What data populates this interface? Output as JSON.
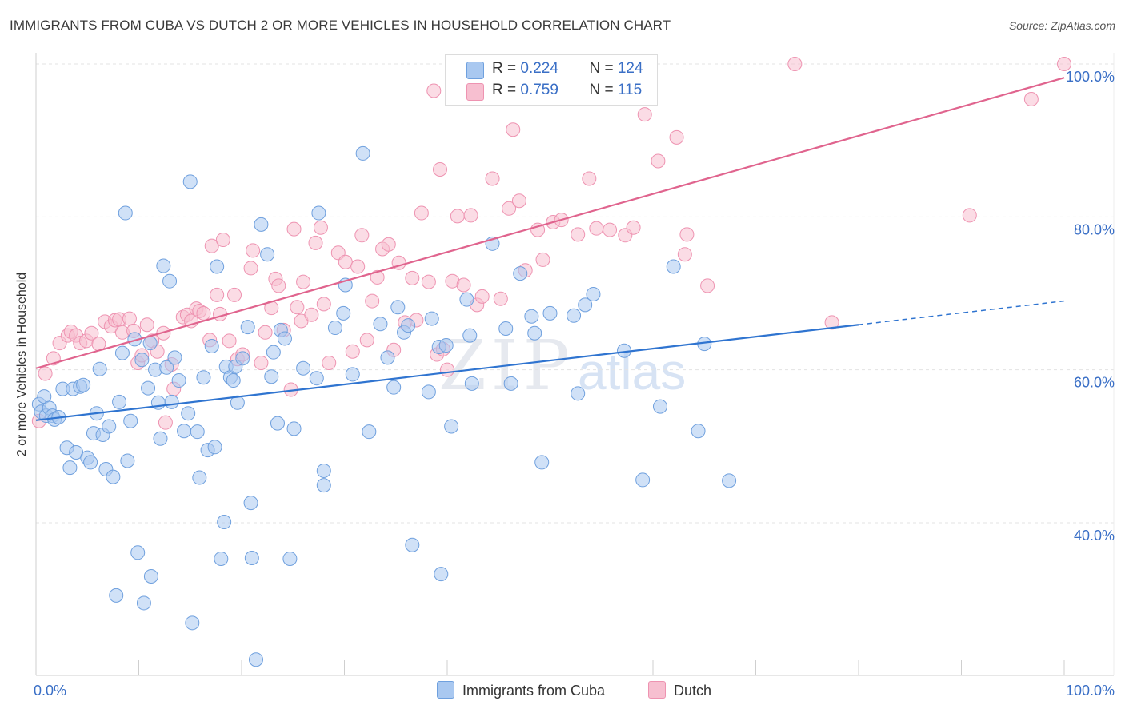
{
  "title": "IMMIGRANTS FROM CUBA VS DUTCH 2 OR MORE VEHICLES IN HOUSEHOLD CORRELATION CHART",
  "source": "Source: ZipAtlas.com",
  "watermark": "ZIP",
  "watermark_atlas": "atlas",
  "legend": {
    "rows": [
      {
        "r_label": "R = ",
        "r_value": "0.224",
        "n_label": "N = ",
        "n_value": "124"
      },
      {
        "r_label": "R = ",
        "r_value": "0.759",
        "n_label": "N = ",
        "n_value": "115"
      }
    ]
  },
  "bottom_legend": [
    "Immigrants from Cuba",
    "Dutch"
  ],
  "colors": {
    "cuba_fill": "#a9c8f0",
    "cuba_stroke": "#6fa0de",
    "cuba_line": "#2f74d0",
    "dutch_fill": "#f7bfd0",
    "dutch_stroke": "#ee93b1",
    "dutch_line": "#e0648e",
    "tick_label": "#3a6fc6",
    "grid": "#e3e3e3"
  },
  "chart_data": {
    "type": "scatter",
    "title": "IMMIGRANTS FROM CUBA VS DUTCH 2 OR MORE VEHICLES IN HOUSEHOLD CORRELATION CHART",
    "xlabel": "",
    "ylabel": "2 or more Vehicles in Household",
    "xlim": [
      0,
      100
    ],
    "ylim": [
      20,
      102
    ],
    "x_tick_labels": [
      "0.0%",
      "100.0%"
    ],
    "y_ticks": [
      40,
      60,
      80,
      100
    ],
    "y_tick_labels": [
      "40.0%",
      "60.0%",
      "80.0%",
      "100.0%"
    ],
    "grid": true,
    "legend_position": "top-center",
    "series": [
      {
        "name": "Immigrants from Cuba",
        "R": 0.224,
        "N": 124,
        "trend": {
          "x0": 0,
          "y0": 53.4,
          "x1": 80,
          "y1": 65.9,
          "dashed_to_x": 100,
          "dashed_to_y": 69.0
        },
        "points": [
          [
            0.3,
            55.5
          ],
          [
            0.5,
            54.5
          ],
          [
            0.8,
            56.5
          ],
          [
            1.0,
            54.0
          ],
          [
            1.3,
            55.0
          ],
          [
            1.6,
            54.0
          ],
          [
            1.8,
            53.5
          ],
          [
            2.2,
            53.8
          ],
          [
            2.6,
            57.5
          ],
          [
            3.0,
            49.8
          ],
          [
            3.3,
            47.2
          ],
          [
            3.6,
            57.5
          ],
          [
            3.9,
            49.2
          ],
          [
            4.3,
            57.8
          ],
          [
            4.6,
            58.0
          ],
          [
            5.0,
            48.5
          ],
          [
            5.3,
            47.9
          ],
          [
            5.6,
            51.7
          ],
          [
            5.9,
            54.3
          ],
          [
            6.2,
            60.1
          ],
          [
            6.5,
            51.5
          ],
          [
            6.8,
            47.0
          ],
          [
            7.1,
            52.6
          ],
          [
            7.5,
            46.0
          ],
          [
            7.8,
            30.5
          ],
          [
            8.1,
            55.8
          ],
          [
            8.4,
            62.2
          ],
          [
            8.7,
            80.5
          ],
          [
            8.9,
            48.1
          ],
          [
            9.2,
            53.3
          ],
          [
            9.6,
            64.0
          ],
          [
            9.9,
            36.1
          ],
          [
            10.3,
            61.3
          ],
          [
            10.5,
            29.5
          ],
          [
            10.9,
            57.6
          ],
          [
            11.1,
            63.5
          ],
          [
            11.2,
            33.0
          ],
          [
            11.6,
            60.0
          ],
          [
            11.9,
            55.7
          ],
          [
            12.1,
            51.0
          ],
          [
            12.4,
            73.6
          ],
          [
            12.7,
            60.3
          ],
          [
            13.0,
            71.6
          ],
          [
            13.2,
            55.8
          ],
          [
            13.5,
            61.6
          ],
          [
            13.9,
            58.6
          ],
          [
            14.4,
            52.0
          ],
          [
            14.8,
            54.3
          ],
          [
            15.0,
            84.6
          ],
          [
            15.2,
            26.9
          ],
          [
            15.7,
            51.9
          ],
          [
            15.9,
            45.9
          ],
          [
            16.3,
            59.0
          ],
          [
            16.7,
            49.5
          ],
          [
            17.1,
            63.1
          ],
          [
            17.4,
            49.9
          ],
          [
            17.6,
            73.5
          ],
          [
            18.0,
            35.3
          ],
          [
            18.3,
            40.1
          ],
          [
            18.5,
            60.4
          ],
          [
            18.9,
            59.0
          ],
          [
            19.2,
            58.6
          ],
          [
            19.4,
            60.4
          ],
          [
            19.6,
            55.7
          ],
          [
            20.1,
            61.5
          ],
          [
            20.6,
            65.6
          ],
          [
            20.9,
            42.6
          ],
          [
            21.0,
            35.4
          ],
          [
            21.4,
            22.1
          ],
          [
            21.9,
            79.0
          ],
          [
            22.5,
            75.1
          ],
          [
            22.9,
            59.1
          ],
          [
            23.1,
            62.3
          ],
          [
            23.5,
            53.0
          ],
          [
            23.8,
            65.2
          ],
          [
            24.2,
            64.1
          ],
          [
            24.7,
            35.3
          ],
          [
            25.1,
            52.3
          ],
          [
            26.0,
            60.2
          ],
          [
            27.3,
            58.9
          ],
          [
            27.5,
            80.5
          ],
          [
            28.0,
            46.8
          ],
          [
            28.0,
            44.9
          ],
          [
            29.1,
            65.5
          ],
          [
            29.9,
            67.4
          ],
          [
            30.1,
            71.1
          ],
          [
            30.8,
            59.4
          ],
          [
            31.8,
            88.3
          ],
          [
            32.4,
            51.9
          ],
          [
            33.5,
            66.0
          ],
          [
            34.2,
            61.6
          ],
          [
            34.8,
            57.7
          ],
          [
            35.2,
            68.2
          ],
          [
            35.8,
            64.9
          ],
          [
            36.2,
            65.8
          ],
          [
            36.6,
            37.1
          ],
          [
            38.2,
            57.1
          ],
          [
            38.5,
            66.7
          ],
          [
            39.2,
            63.0
          ],
          [
            39.4,
            33.3
          ],
          [
            39.9,
            63.2
          ],
          [
            40.4,
            52.6
          ],
          [
            41.9,
            69.2
          ],
          [
            42.2,
            64.5
          ],
          [
            42.4,
            58.2
          ],
          [
            44.4,
            76.5
          ],
          [
            45.7,
            65.4
          ],
          [
            46.2,
            58.2
          ],
          [
            47.1,
            72.6
          ],
          [
            48.2,
            67.0
          ],
          [
            48.5,
            64.8
          ],
          [
            49.2,
            47.9
          ],
          [
            50.0,
            67.4
          ],
          [
            52.3,
            67.1
          ],
          [
            52.7,
            56.9
          ],
          [
            53.4,
            68.5
          ],
          [
            54.2,
            69.9
          ],
          [
            57.2,
            62.5
          ],
          [
            59.0,
            45.6
          ],
          [
            60.7,
            55.2
          ],
          [
            64.4,
            52.0
          ],
          [
            65.0,
            63.4
          ],
          [
            67.4,
            45.5
          ],
          [
            62.0,
            73.5
          ]
        ]
      },
      {
        "name": "Dutch",
        "R": 0.759,
        "N": 115,
        "trend": {
          "x0": 0,
          "y0": 60.2,
          "x1": 100,
          "y1": 98.2
        },
        "points": [
          [
            0.3,
            53.3
          ],
          [
            0.9,
            59.5
          ],
          [
            1.7,
            61.5
          ],
          [
            2.3,
            63.5
          ],
          [
            3.1,
            64.5
          ],
          [
            3.4,
            65.0
          ],
          [
            3.9,
            64.5
          ],
          [
            4.3,
            63.5
          ],
          [
            4.9,
            63.8
          ],
          [
            5.4,
            64.8
          ],
          [
            6.1,
            63.4
          ],
          [
            6.7,
            66.3
          ],
          [
            7.3,
            65.7
          ],
          [
            7.7,
            66.5
          ],
          [
            8.1,
            66.6
          ],
          [
            8.4,
            64.9
          ],
          [
            9.1,
            66.7
          ],
          [
            9.5,
            65.1
          ],
          [
            9.9,
            60.9
          ],
          [
            10.3,
            61.9
          ],
          [
            10.8,
            65.9
          ],
          [
            11.3,
            63.8
          ],
          [
            11.8,
            62.4
          ],
          [
            12.4,
            64.8
          ],
          [
            12.6,
            53.1
          ],
          [
            13.2,
            60.7
          ],
          [
            13.4,
            57.5
          ],
          [
            14.3,
            66.9
          ],
          [
            14.7,
            67.2
          ],
          [
            15.1,
            66.4
          ],
          [
            15.6,
            68.0
          ],
          [
            15.9,
            67.7
          ],
          [
            16.3,
            67.4
          ],
          [
            16.9,
            63.9
          ],
          [
            17.1,
            76.2
          ],
          [
            17.6,
            69.8
          ],
          [
            17.9,
            67.3
          ],
          [
            18.2,
            77.0
          ],
          [
            18.8,
            63.8
          ],
          [
            19.3,
            69.8
          ],
          [
            19.6,
            61.4
          ],
          [
            20.1,
            62.0
          ],
          [
            20.9,
            73.3
          ],
          [
            21.1,
            75.6
          ],
          [
            21.9,
            60.9
          ],
          [
            22.3,
            64.9
          ],
          [
            22.9,
            68.1
          ],
          [
            23.3,
            71.9
          ],
          [
            23.6,
            71.0
          ],
          [
            24.1,
            65.2
          ],
          [
            24.8,
            57.4
          ],
          [
            25.1,
            78.4
          ],
          [
            25.4,
            68.2
          ],
          [
            25.8,
            66.4
          ],
          [
            26.0,
            71.5
          ],
          [
            26.8,
            67.2
          ],
          [
            27.2,
            76.6
          ],
          [
            27.7,
            78.6
          ],
          [
            28.0,
            68.6
          ],
          [
            28.5,
            60.9
          ],
          [
            29.4,
            75.3
          ],
          [
            30.1,
            74.1
          ],
          [
            30.8,
            62.4
          ],
          [
            31.3,
            73.5
          ],
          [
            31.7,
            77.6
          ],
          [
            32.2,
            63.9
          ],
          [
            32.7,
            69.0
          ],
          [
            33.2,
            72.1
          ],
          [
            33.7,
            75.8
          ],
          [
            34.3,
            76.4
          ],
          [
            34.8,
            62.6
          ],
          [
            35.3,
            74.0
          ],
          [
            35.9,
            66.2
          ],
          [
            36.6,
            72.0
          ],
          [
            37.0,
            66.5
          ],
          [
            37.5,
            80.5
          ],
          [
            38.2,
            71.5
          ],
          [
            38.7,
            96.5
          ],
          [
            39.0,
            62.0
          ],
          [
            39.3,
            86.2
          ],
          [
            39.6,
            62.7
          ],
          [
            40.5,
            71.6
          ],
          [
            41.0,
            80.1
          ],
          [
            41.6,
            71.1
          ],
          [
            42.3,
            80.2
          ],
          [
            42.9,
            68.5
          ],
          [
            43.4,
            69.6
          ],
          [
            44.4,
            85.0
          ],
          [
            45.2,
            69.3
          ],
          [
            46.0,
            81.1
          ],
          [
            46.4,
            91.4
          ],
          [
            47.0,
            82.1
          ],
          [
            47.6,
            73.0
          ],
          [
            48.8,
            78.3
          ],
          [
            49.3,
            74.4
          ],
          [
            50.3,
            79.3
          ],
          [
            51.1,
            79.6
          ],
          [
            52.7,
            77.7
          ],
          [
            53.8,
            85.0
          ],
          [
            54.5,
            78.5
          ],
          [
            55.8,
            78.3
          ],
          [
            57.3,
            77.6
          ],
          [
            58.1,
            78.6
          ],
          [
            59.2,
            93.4
          ],
          [
            60.5,
            87.3
          ],
          [
            62.3,
            90.4
          ],
          [
            63.1,
            75.1
          ],
          [
            63.3,
            77.7
          ],
          [
            65.3,
            71.0
          ],
          [
            73.8,
            100.0
          ],
          [
            77.4,
            66.2
          ],
          [
            90.8,
            80.2
          ],
          [
            96.8,
            95.4
          ],
          [
            100.0,
            100.0
          ],
          [
            40.0,
            60.0
          ]
        ]
      }
    ]
  }
}
